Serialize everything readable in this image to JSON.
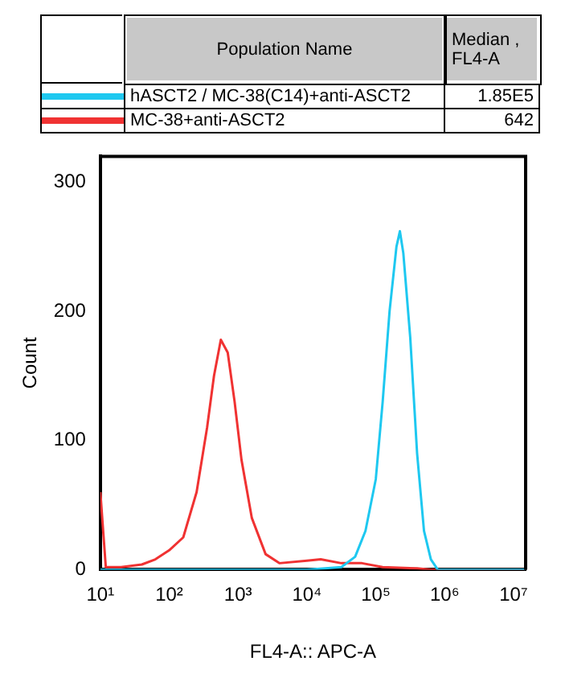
{
  "chart_data": {
    "type": "line",
    "xlabel": "FL4-A:: APC-A",
    "ylabel": "Count",
    "log": "x",
    "xlim": [
      10,
      15000000
    ],
    "xticks": [
      {
        "value": 10,
        "label": "10¹"
      },
      {
        "value": 100,
        "label": "10²"
      },
      {
        "value": 1000,
        "label": "10³"
      },
      {
        "value": 10000,
        "label": "10⁴"
      },
      {
        "value": 100000,
        "label": "10⁵"
      },
      {
        "value": 1000000,
        "label": "10⁶"
      },
      {
        "value": 10000000,
        "label": "10⁷"
      }
    ],
    "ylim": [
      0,
      320
    ],
    "yticks": [
      0,
      100,
      200,
      300
    ],
    "grid": false,
    "legend": "top",
    "marker": "none",
    "line_style": "solid",
    "annotations": [
      "Population Name",
      "Median , FL4-A",
      "1.85E5",
      "642"
    ],
    "series": [
      {
        "name": "hASCT2 / MC-38(C14)+anti-ASCT2",
        "color": "#1ec8f0",
        "x": [
          10,
          10000,
          31623,
          50119,
          70795,
          100000,
          125893,
          158489,
          199526,
          223872,
          251189,
          316228,
          398107,
          501187,
          630957,
          794328,
          15000000
        ],
        "values": [
          0,
          0,
          2,
          10,
          30,
          70,
          130,
          200,
          250,
          262,
          245,
          180,
          90,
          30,
          8,
          0,
          0
        ]
      },
      {
        "name": "MC-38+anti-ASCT2",
        "color": "#f03232",
        "x": [
          10,
          12,
          20,
          40,
          63,
          100,
          160,
          250,
          355,
          447,
          562,
          708,
          891,
          1122,
          1585,
          2512,
          3981,
          10000,
          15849,
          31623,
          63096,
          125893,
          398107,
          630957,
          15000000
        ],
        "values": [
          60,
          2,
          2,
          4,
          8,
          15,
          25,
          60,
          110,
          150,
          178,
          168,
          130,
          85,
          40,
          12,
          5,
          7,
          8,
          5,
          5,
          2,
          1,
          0,
          0
        ]
      }
    ]
  }
}
